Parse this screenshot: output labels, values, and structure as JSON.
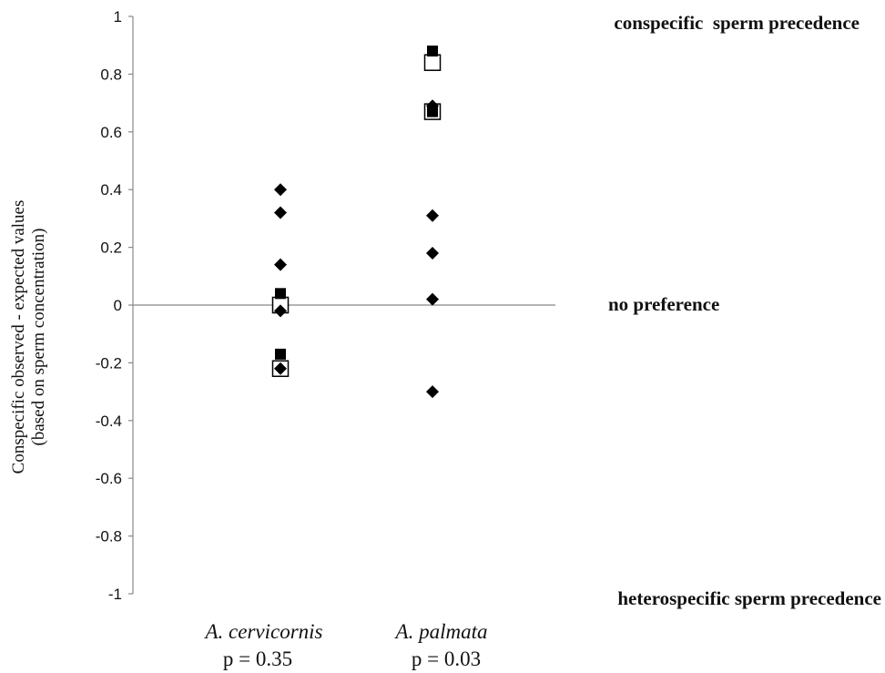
{
  "chart_data": {
    "type": "scatter",
    "ylabel_line1": "Conspecific observed - expected values",
    "ylabel_line2": "(based on sperm concentration)",
    "ylim": [
      -1,
      1
    ],
    "yticks": [
      "1",
      "0.8",
      "0.6",
      "0.4",
      "0.2",
      "0",
      "-0.2",
      "-0.4",
      "-0.6",
      "-0.8",
      "-1"
    ],
    "ytick_values": [
      1,
      0.8,
      0.6,
      0.4,
      0.2,
      0,
      -0.2,
      -0.4,
      -0.6,
      -0.8,
      -1
    ],
    "categories": [
      "A. cervicornis",
      "A. palmata"
    ],
    "pvalues": [
      "p = 0.35",
      "p = 0.03"
    ],
    "annotations": {
      "top": "conspecific  sperm precedence",
      "middle": "no preference",
      "bottom": "heterospecific sperm precedence"
    },
    "reference_line": 0,
    "series": [
      {
        "marker": "diamond-filled",
        "points": [
          {
            "category": "A. cervicornis",
            "y": 0.4
          },
          {
            "category": "A. cervicornis",
            "y": 0.32
          },
          {
            "category": "A. cervicornis",
            "y": 0.14
          },
          {
            "category": "A. cervicornis",
            "y": -0.02
          },
          {
            "category": "A. cervicornis",
            "y": -0.22
          },
          {
            "category": "A. palmata",
            "y": 0.69
          },
          {
            "category": "A. palmata",
            "y": 0.31
          },
          {
            "category": "A. palmata",
            "y": 0.18
          },
          {
            "category": "A. palmata",
            "y": 0.02
          },
          {
            "category": "A. palmata",
            "y": -0.3
          }
        ]
      },
      {
        "marker": "square-filled",
        "points": [
          {
            "category": "A. cervicornis",
            "y": 0.04
          },
          {
            "category": "A. cervicornis",
            "y": -0.17
          },
          {
            "category": "A. palmata",
            "y": 0.88
          },
          {
            "category": "A. palmata",
            "y": 0.67
          }
        ]
      },
      {
        "marker": "square-open",
        "points": [
          {
            "category": "A. cervicornis",
            "y": 0.0
          },
          {
            "category": "A. cervicornis",
            "y": -0.22
          },
          {
            "category": "A. palmata",
            "y": 0.84
          },
          {
            "category": "A. palmata",
            "y": 0.67
          }
        ]
      }
    ]
  }
}
